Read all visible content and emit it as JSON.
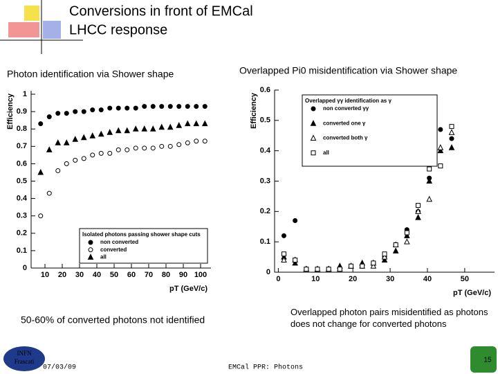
{
  "slide": {
    "title": "Conversions in front of EMCal",
    "subtitle": "LHCC response",
    "left_note": "50-60% of converted photons not identified",
    "right_note": "Overlapped photon pairs misidentified as photons does not change for converted photons",
    "date": "07/03/09",
    "footer": "EMCal PPR: Photons",
    "logo_top": "INFN",
    "logo_bottom": "Frascati",
    "page": "15"
  },
  "chart_data": [
    {
      "type": "scatter",
      "title": "Photon identification via Shower shape",
      "x_label": "pT (GeV/c)",
      "y_label": "Efficiency",
      "legend_title": "Isolated photons passing shower shape cuts",
      "legend": "lower-right",
      "xlim": [
        2,
        106
      ],
      "ylim": [
        0,
        1.02
      ],
      "xticks": [
        10,
        20,
        30,
        40,
        50,
        60,
        70,
        80,
        90,
        100
      ],
      "yticks": [
        0,
        0.1,
        0.2,
        0.3,
        0.4,
        0.5,
        0.6,
        0.7,
        0.8,
        0.9,
        1
      ],
      "x": [
        7.5,
        12.5,
        17.5,
        22.5,
        27.5,
        32.5,
        37.5,
        42.5,
        47.5,
        52.5,
        57.5,
        62.5,
        67.5,
        72.5,
        77.5,
        82.5,
        87.5,
        92.5,
        97.5,
        102.5
      ],
      "series": [
        {
          "name": "non converted",
          "color": "#000000",
          "marker": "circle-filled",
          "values": [
            0.83,
            0.87,
            0.89,
            0.89,
            0.9,
            0.9,
            0.91,
            0.91,
            0.92,
            0.92,
            0.92,
            0.92,
            0.93,
            0.93,
            0.93,
            0.93,
            0.93,
            0.93,
            0.93,
            0.93
          ]
        },
        {
          "name": "converted",
          "color": "#000000",
          "marker": "circle-open",
          "values": [
            0.3,
            0.43,
            0.56,
            0.6,
            0.62,
            0.63,
            0.65,
            0.66,
            0.66,
            0.68,
            0.68,
            0.69,
            0.69,
            0.69,
            0.7,
            0.7,
            0.71,
            0.72,
            0.73,
            0.73
          ]
        },
        {
          "name": "all",
          "color": "#000000",
          "marker": "triangle-filled",
          "values": [
            0.55,
            0.68,
            0.72,
            0.72,
            0.74,
            0.75,
            0.76,
            0.77,
            0.78,
            0.79,
            0.79,
            0.8,
            0.8,
            0.8,
            0.81,
            0.81,
            0.82,
            0.83,
            0.83,
            0.83
          ]
        }
      ]
    },
    {
      "type": "scatter",
      "title": "Overlapped Pi0  misidentification via Shower shape",
      "x_label": "pT (GeV/c)",
      "y_label": "Efficiency",
      "legend_title": "Overlapped γγ identification as γ",
      "legend": "upper-left",
      "xlim": [
        -1,
        58
      ],
      "ylim": [
        0,
        0.6
      ],
      "xticks": [
        0,
        10,
        20,
        30,
        40,
        50
      ],
      "yticks": [
        0,
        0.1,
        0.2,
        0.3,
        0.4,
        0.5,
        0.6
      ],
      "x": [
        1.5,
        4.5,
        7.5,
        10.5,
        13.5,
        16.5,
        19.5,
        22.5,
        25.5,
        28.5,
        31.5,
        34.5,
        37.5,
        40.5,
        43.5,
        46.5
      ],
      "series": [
        {
          "name": "non converted γγ",
          "color": "#000000",
          "marker": "circle-filled",
          "values": [
            0.12,
            0.17,
            0.01,
            0.01,
            0.01,
            0.01,
            0.02,
            0.02,
            0.03,
            0.05,
            0.09,
            0.14,
            0.2,
            0.31,
            0.47,
            0.44
          ]
        },
        {
          "name": "converted one γ",
          "color": "#000000",
          "marker": "triangle-filled",
          "values": [
            0.05,
            0.03,
            0.01,
            0.01,
            0.01,
            0.02,
            0.02,
            0.03,
            0.03,
            0.04,
            0.07,
            0.12,
            0.18,
            0.3,
            0.4,
            0.41
          ]
        },
        {
          "name": "converted both γ",
          "color": "#000000",
          "marker": "triangle-open",
          "values": [
            0.04,
            0.04,
            0.01,
            0.01,
            0.01,
            0.01,
            0.02,
            0.02,
            0.02,
            0.05,
            0.09,
            0.1,
            0.2,
            0.24,
            0.41,
            0.46
          ]
        },
        {
          "name": "all",
          "color": "#000000",
          "marker": "square-open",
          "values": [
            0.06,
            0.04,
            0.01,
            0.01,
            0.01,
            0.01,
            0.02,
            0.02,
            0.03,
            0.06,
            0.09,
            0.13,
            0.22,
            0.34,
            0.35,
            0.48
          ]
        }
      ]
    }
  ]
}
